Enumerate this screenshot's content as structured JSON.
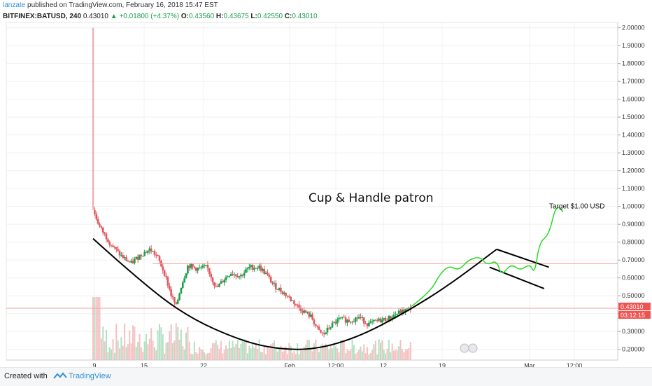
{
  "header": {
    "author": "lanzate",
    "published_text": "published on TradingView.com, February 16, 2018 15:47 EST",
    "symbol": "BITFINEX:BATUSD, 240",
    "last": "0.43010",
    "change": "+0.01800 (+4.37%)",
    "o_label": "O:",
    "o_value": "0.43560",
    "h_label": "H:",
    "h_value": "0.43675",
    "l_label": "L:",
    "l_value": "0.42550",
    "c_label": "C:",
    "c_value": "0.43010"
  },
  "footer": {
    "created_with": "Created with",
    "brand": "TradingView"
  },
  "colors": {
    "up": "#19a04b",
    "down": "#e0585f",
    "forecast": "#22dd22",
    "pattern": "#000000",
    "resistance": "#f0a0a0",
    "price_tag": "#ef5350",
    "axis_text": "#333333",
    "grid": "#f0f0f0"
  },
  "chart_data": {
    "type": "candlestick",
    "symbol": "BITFINEX:BATUSD",
    "interval": "240",
    "ylim": [
      0.14,
      2.03
    ],
    "y_ticks": [
      "2.00000",
      "1.90000",
      "1.80000",
      "1.70000",
      "1.60000",
      "1.50000",
      "1.40000",
      "1.30000",
      "1.20000",
      "1.10000",
      "1.00000",
      "0.90000",
      "0.80000",
      "0.70000",
      "0.60000",
      "0.50000",
      "0.40000",
      "0.30000",
      "0.20000"
    ],
    "x_ticks": [
      "9",
      "15",
      "22",
      "Feb",
      "12:00",
      "12",
      "19",
      "Mar",
      "12:00"
    ],
    "price_series": {
      "points": [
        [
          0,
          0.98
        ],
        [
          3,
          0.88
        ],
        [
          8,
          0.78
        ],
        [
          12,
          0.72
        ],
        [
          16,
          0.68
        ],
        [
          20,
          0.73
        ],
        [
          24,
          0.76
        ],
        [
          27,
          0.72
        ],
        [
          30,
          0.63
        ],
        [
          33,
          0.5
        ],
        [
          35,
          0.44
        ],
        [
          37,
          0.55
        ],
        [
          40,
          0.67
        ],
        [
          44,
          0.65
        ],
        [
          48,
          0.66
        ],
        [
          50,
          0.6
        ],
        [
          52,
          0.54
        ],
        [
          55,
          0.59
        ],
        [
          58,
          0.63
        ],
        [
          62,
          0.61
        ],
        [
          66,
          0.66
        ],
        [
          70,
          0.66
        ],
        [
          73,
          0.62
        ],
        [
          76,
          0.56
        ],
        [
          80,
          0.52
        ],
        [
          84,
          0.47
        ],
        [
          88,
          0.42
        ],
        [
          92,
          0.38
        ],
        [
          95,
          0.3
        ],
        [
          97,
          0.28
        ],
        [
          100,
          0.33
        ],
        [
          104,
          0.37
        ],
        [
          108,
          0.36
        ],
        [
          112,
          0.38
        ],
        [
          116,
          0.34
        ],
        [
          120,
          0.36
        ],
        [
          124,
          0.37
        ],
        [
          128,
          0.4
        ],
        [
          132,
          0.42
        ],
        [
          134,
          0.43
        ]
      ]
    },
    "current_price": "0.43010",
    "countdown": "03:12:15",
    "resistance_level": 0.68,
    "annotation_title": "Cup & Handle patron",
    "target_label": "Target $1.00 USD",
    "target_value": 1.0,
    "cup_curve": [
      [
        0,
        0.82
      ],
      [
        20,
        0.58
      ],
      [
        40,
        0.38
      ],
      [
        62,
        0.25
      ],
      [
        78,
        0.2
      ],
      [
        94,
        0.2
      ],
      [
        112,
        0.27
      ],
      [
        132,
        0.41
      ],
      [
        150,
        0.56
      ],
      [
        170,
        0.76
      ]
    ],
    "handle_lines": [
      [
        [
          170,
          0.76
        ],
        [
          192,
          0.66
        ]
      ],
      [
        [
          167,
          0.66
        ],
        [
          190,
          0.54
        ]
      ]
    ],
    "forecast_path": [
      [
        134,
        0.44
      ],
      [
        142,
        0.52
      ],
      [
        146,
        0.62
      ],
      [
        150,
        0.67
      ],
      [
        154,
        0.64
      ],
      [
        158,
        0.7
      ],
      [
        163,
        0.72
      ],
      [
        166,
        0.67
      ],
      [
        170,
        0.7
      ],
      [
        172,
        0.61
      ],
      [
        176,
        0.68
      ],
      [
        180,
        0.64
      ],
      [
        184,
        0.68
      ],
      [
        186,
        0.62
      ],
      [
        188,
        0.8
      ],
      [
        192,
        0.84
      ],
      [
        195,
        1.01
      ],
      [
        198,
        0.97
      ]
    ],
    "forecast_days": 64
  }
}
